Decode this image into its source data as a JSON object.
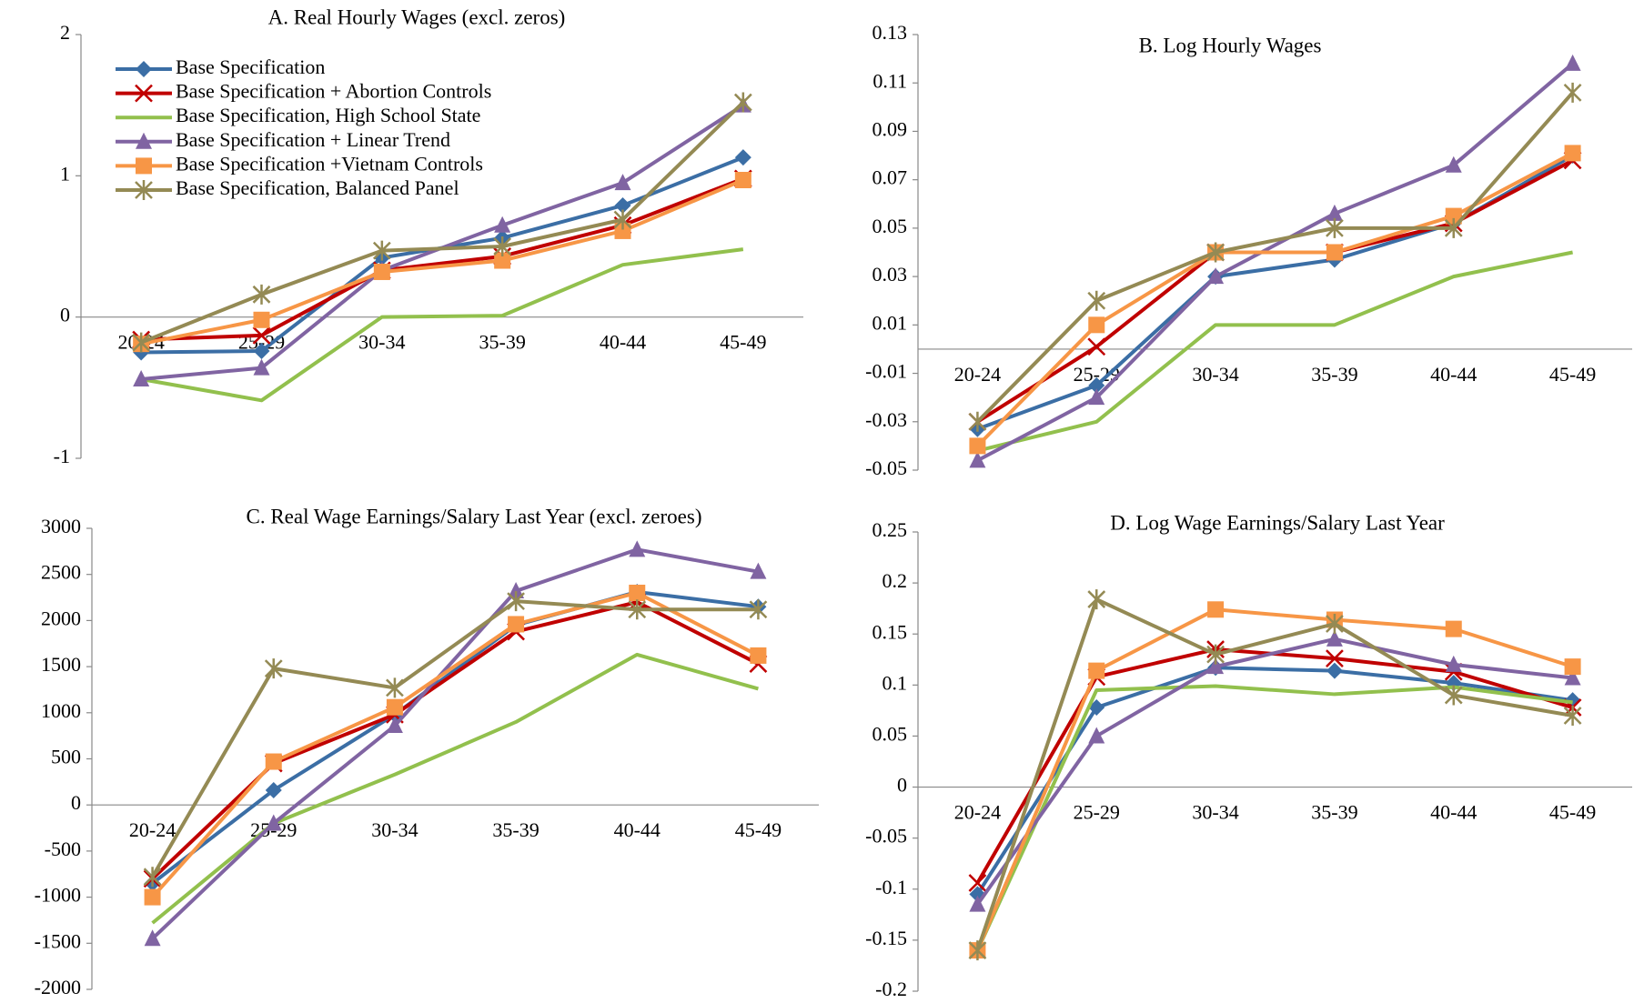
{
  "chart_data": [
    {
      "type": "line",
      "title": "A.  Real Hourly Wages (excl. zeros)",
      "legend": true,
      "categories": [
        "20-24",
        "25-29",
        "30-34",
        "35-39",
        "40-44",
        "45-49"
      ],
      "ylim": [
        -1,
        2
      ],
      "yticks": [
        -1,
        0,
        1,
        2
      ],
      "series": [
        {
          "name": "Base Specification",
          "color": "#3b6ea5",
          "marker": "diamond",
          "values": [
            -0.25,
            -0.24,
            0.42,
            0.56,
            0.79,
            1.13
          ]
        },
        {
          "name": "Base Specification + Abortion Controls",
          "color": "#c00000",
          "marker": "x",
          "values": [
            -0.16,
            -0.13,
            0.33,
            0.43,
            0.65,
            0.98
          ]
        },
        {
          "name": "Base Specification, High School State",
          "color": "#92c04d",
          "marker": "none",
          "values": [
            -0.44,
            -0.59,
            0.0,
            0.01,
            0.37,
            0.48
          ]
        },
        {
          "name": "Base Specification + Linear Trend",
          "color": "#8064a2",
          "marker": "triangle",
          "values": [
            -0.44,
            -0.36,
            0.33,
            0.65,
            0.95,
            1.5
          ]
        },
        {
          "name": "Base Specification +Vietnam Controls",
          "color": "#f79646",
          "marker": "square",
          "values": [
            -0.19,
            -0.02,
            0.32,
            0.4,
            0.61,
            0.97
          ]
        },
        {
          "name": "Base Specification, Balanced Panel",
          "color": "#948a54",
          "marker": "star",
          "values": [
            -0.18,
            0.16,
            0.47,
            0.5,
            0.69,
            1.52
          ]
        }
      ]
    },
    {
      "type": "line",
      "title": "B.  Log Hourly Wages",
      "legend": false,
      "categories": [
        "20-24",
        "25-29",
        "30-34",
        "35-39",
        "40-44",
        "45-49"
      ],
      "ylim": [
        -0.05,
        0.13
      ],
      "yticks": [
        -0.05,
        -0.03,
        -0.01,
        0.01,
        0.03,
        0.05,
        0.07,
        0.09,
        0.11,
        0.13
      ],
      "series": [
        {
          "color": "#3b6ea5",
          "marker": "diamond",
          "values": [
            -0.033,
            -0.015,
            0.03,
            0.037,
            0.052,
            0.08
          ]
        },
        {
          "color": "#c00000",
          "marker": "x",
          "values": [
            -0.03,
            0.001,
            0.04,
            0.04,
            0.052,
            0.078
          ]
        },
        {
          "color": "#92c04d",
          "marker": "none",
          "values": [
            -0.042,
            -0.03,
            0.01,
            0.01,
            0.03,
            0.04
          ]
        },
        {
          "color": "#8064a2",
          "marker": "triangle",
          "values": [
            -0.046,
            -0.02,
            0.03,
            0.056,
            0.076,
            0.118
          ]
        },
        {
          "color": "#f79646",
          "marker": "square",
          "values": [
            -0.04,
            0.01,
            0.04,
            0.04,
            0.055,
            0.081
          ]
        },
        {
          "color": "#948a54",
          "marker": "star",
          "values": [
            -0.03,
            0.02,
            0.04,
            0.05,
            0.05,
            0.106
          ]
        }
      ]
    },
    {
      "type": "line",
      "title": "C.  Real Wage Earnings/Salary Last Year (excl. zeroes)",
      "legend": false,
      "categories": [
        "20-24",
        "25-29",
        "30-34",
        "35-39",
        "40-44",
        "45-49"
      ],
      "ylim": [
        -2000,
        3000
      ],
      "yticks": [
        -2000,
        -1500,
        -1000,
        -500,
        0,
        500,
        1000,
        1500,
        2000,
        2500,
        3000
      ],
      "series": [
        {
          "color": "#3b6ea5",
          "marker": "diamond",
          "values": [
            -850,
            160,
            980,
            1950,
            2310,
            2150
          ]
        },
        {
          "color": "#c00000",
          "marker": "x",
          "values": [
            -800,
            450,
            980,
            1880,
            2200,
            1530
          ]
        },
        {
          "color": "#92c04d",
          "marker": "none",
          "values": [
            -1280,
            -200,
            330,
            900,
            1630,
            1260
          ]
        },
        {
          "color": "#8064a2",
          "marker": "triangle",
          "values": [
            -1450,
            -200,
            860,
            2320,
            2770,
            2530
          ]
        },
        {
          "color": "#f79646",
          "marker": "square",
          "values": [
            -1000,
            470,
            1060,
            1960,
            2300,
            1620
          ]
        },
        {
          "color": "#948a54",
          "marker": "star",
          "values": [
            -780,
            1480,
            1270,
            2210,
            2120,
            2120
          ]
        }
      ]
    },
    {
      "type": "line",
      "title": "D.  Log Wage Earnings/Salary Last Year",
      "legend": false,
      "categories": [
        "20-24",
        "25-29",
        "30-34",
        "35-39",
        "40-44",
        "45-49"
      ],
      "ylim": [
        -0.2,
        0.25
      ],
      "yticks": [
        -0.2,
        -0.15,
        -0.1,
        -0.05,
        0,
        0.05,
        0.1,
        0.15,
        0.2,
        0.25
      ],
      "series": [
        {
          "color": "#3b6ea5",
          "marker": "diamond",
          "values": [
            -0.105,
            0.078,
            0.117,
            0.114,
            0.102,
            0.085
          ]
        },
        {
          "color": "#c00000",
          "marker": "x",
          "values": [
            -0.094,
            0.108,
            0.135,
            0.126,
            0.113,
            0.078
          ]
        },
        {
          "color": "#92c04d",
          "marker": "none",
          "values": [
            -0.16,
            0.095,
            0.099,
            0.091,
            0.098,
            0.083
          ]
        },
        {
          "color": "#8064a2",
          "marker": "triangle",
          "values": [
            -0.115,
            0.05,
            0.118,
            0.145,
            0.12,
            0.107
          ]
        },
        {
          "color": "#f79646",
          "marker": "square",
          "values": [
            -0.16,
            0.114,
            0.174,
            0.164,
            0.155,
            0.118
          ]
        },
        {
          "color": "#948a54",
          "marker": "star",
          "values": [
            -0.16,
            0.184,
            0.13,
            0.16,
            0.09,
            0.07
          ]
        }
      ]
    }
  ]
}
